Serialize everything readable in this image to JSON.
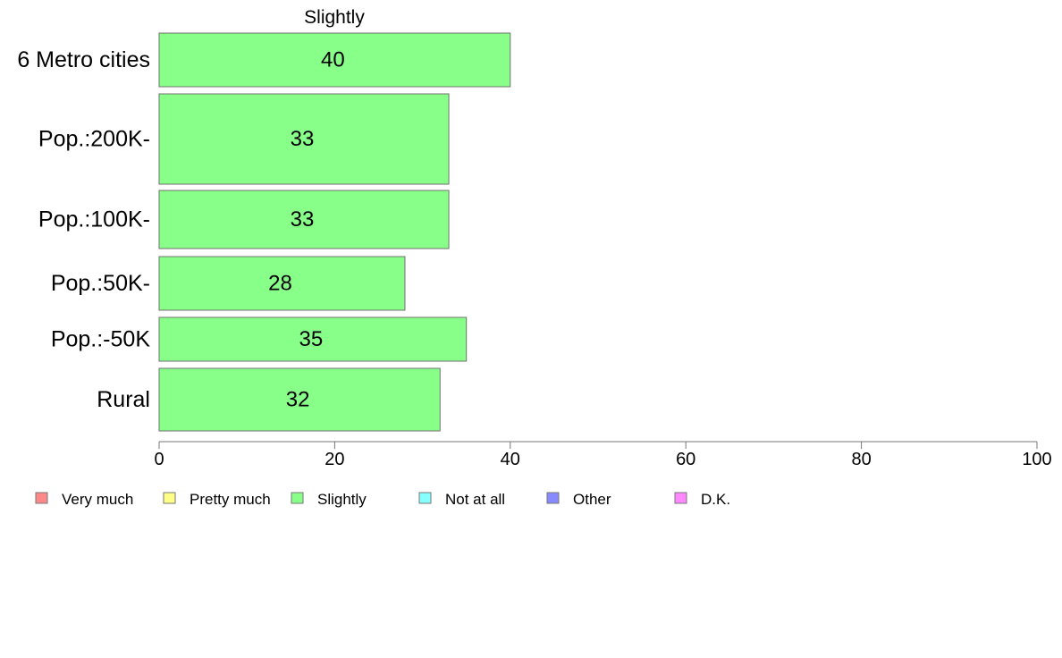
{
  "chart_data": {
    "type": "bar",
    "orientation": "horizontal",
    "title": "Slightly",
    "categories": [
      "6 Metro cities",
      "Pop.:200K-",
      "Pop.:100K-",
      "Pop.:50K-",
      "Pop.:-50K",
      "Rural"
    ],
    "values": [
      40,
      33,
      33,
      28,
      35,
      32
    ],
    "xlim": [
      0,
      100
    ],
    "xticks": [
      0,
      20,
      40,
      60,
      80,
      100
    ],
    "xlabel": "",
    "ylabel": "",
    "bar_color": "#88ff88",
    "bar_border_color": "#707070",
    "grid": false,
    "legend_position": "bottom",
    "legend": [
      {
        "label": "Very much",
        "color": "#ff8888"
      },
      {
        "label": "Pretty much",
        "color": "#ffff88"
      },
      {
        "label": "Slightly",
        "color": "#88ff88"
      },
      {
        "label": "Not at all",
        "color": "#88ffff"
      },
      {
        "label": "Other",
        "color": "#8888ff"
      },
      {
        "label": "D.K.",
        "color": "#ff88ff"
      }
    ]
  }
}
